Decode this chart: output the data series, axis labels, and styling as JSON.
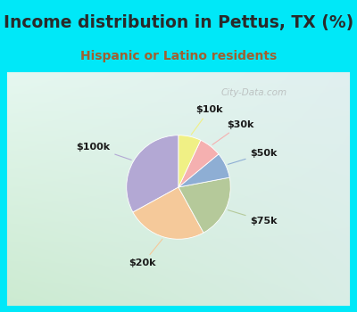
{
  "title": "Income distribution in Pettus, TX (%)",
  "subtitle": "Hispanic or Latino residents",
  "labels": [
    "$100k",
    "$20k",
    "$75k",
    "$50k",
    "$30k",
    "$10k"
  ],
  "sizes": [
    33,
    25,
    20,
    8,
    7,
    7
  ],
  "colors": [
    "#b3a8d4",
    "#f5c99a",
    "#b5c99a",
    "#8eaed4",
    "#f5b0b0",
    "#f0f085"
  ],
  "title_color": "#2a2a2a",
  "subtitle_color": "#a06030",
  "bg_cyan": "#00e8f8",
  "watermark": "City-Data.com",
  "startangle": 90,
  "title_fontsize": 13.5,
  "subtitle_fontsize": 10
}
